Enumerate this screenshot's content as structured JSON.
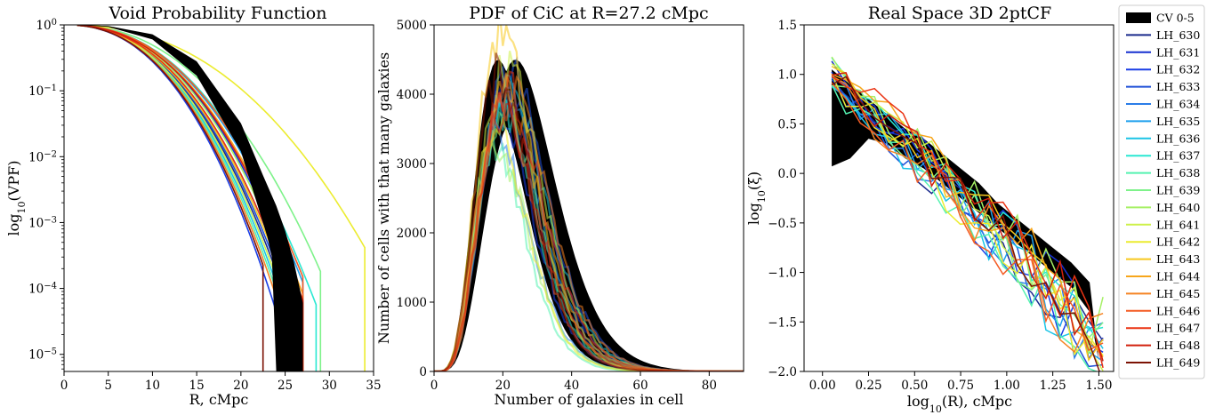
{
  "chart_data": [
    {
      "type": "line",
      "title": "Void Probability Function",
      "xlabel": "R, cMpc",
      "ylabel_main": "log",
      "ylabel_sub": "10",
      "ylabel_rest": "(VPF)",
      "xlim": [
        0,
        35
      ],
      "ylim": [
        5.5e-06,
        1
      ],
      "yscale": "log",
      "xticks": [
        0,
        5,
        10,
        15,
        20,
        25,
        30,
        35
      ],
      "yticks": [
        {
          "v": 1,
          "base": "10",
          "exp": "0"
        },
        {
          "v": 0.1,
          "base": "10",
          "exp": "−1"
        },
        {
          "v": 0.01,
          "base": "10",
          "exp": "−2"
        },
        {
          "v": 0.001,
          "base": "10",
          "exp": "−3"
        },
        {
          "v": 0.0001,
          "base": "10",
          "exp": "−4"
        },
        {
          "v": 1e-05,
          "base": "10",
          "exp": "−5"
        }
      ],
      "band": {
        "name": "CV 0-5",
        "x": [
          1.5,
          5,
          10,
          15,
          20,
          22.5,
          24,
          25,
          26,
          27,
          27,
          26,
          25,
          24,
          23.5,
          23,
          20,
          15,
          10,
          5,
          1.5
        ],
        "y": [
          1,
          0.96,
          0.72,
          0.28,
          0.032,
          0.0052,
          0.0018,
          0.00075,
          0.00025,
          6e-05,
          5.5e-06,
          5.5e-06,
          5.5e-06,
          5.5e-06,
          0.0003,
          0.0006,
          0.012,
          0.17,
          0.6,
          0.93,
          1
        ]
      },
      "series_rules": {
        "decay_scale": [
          9.6,
          10.2,
          9.0,
          9.7,
          9.9,
          10.6,
          9.4,
          10.8,
          9.3,
          11.6,
          10.1,
          9.5,
          14.2,
          9.8,
          10.4,
          9.2,
          10.7,
          9.9,
          10.3,
          9.1
        ],
        "cutoff": [
          26.5,
          27.0,
          25.5,
          26.0,
          26.5,
          27.0,
          25.5,
          28.5,
          26.0,
          29.0,
          27.0,
          25.5,
          34.0,
          26.5,
          27.0,
          25.0,
          27.0,
          26.0,
          27.0,
          22.5
        ]
      }
    },
    {
      "type": "line",
      "title": "PDF of CiC at R=27.2 cMpc",
      "xlabel": "Number of galaxies in cell",
      "ylabel": "Number of cells with that many galaxies",
      "xlim": [
        0,
        90
      ],
      "ylim": [
        0,
        5000
      ],
      "xticks": [
        0,
        20,
        40,
        60,
        80
      ],
      "yticks": [
        0,
        1000,
        2000,
        3000,
        4000,
        5000
      ],
      "band": {
        "name": "CV 0-5",
        "peak": [
          22,
          28
        ],
        "amp": [
          4000,
          4500
        ]
      },
      "series_rules": {
        "mean": [
          24,
          25,
          23,
          26,
          22,
          24.5,
          25.5,
          23.5,
          21,
          24,
          22,
          25,
          21.5,
          23,
          24.5,
          26,
          23,
          25,
          24,
          22.5
        ],
        "amp": [
          3900,
          4100,
          3600,
          4300,
          3400,
          4000,
          4200,
          3700,
          3300,
          3800,
          3200,
          4400,
          3500,
          4900,
          4000,
          4200,
          3900,
          4100,
          3800,
          4300
        ]
      }
    },
    {
      "type": "line",
      "title": "Real Space 3D 2ptCF",
      "xlabel_main": "log",
      "xlabel_sub": "10",
      "xlabel_rest": "(R), cMpc",
      "ylabel_main": "log",
      "ylabel_sub": "10",
      "ylabel_rest": "(ξ)",
      "xlim": [
        -0.1,
        1.58
      ],
      "ylim": [
        -2.0,
        1.5
      ],
      "xticks": [
        0.0,
        0.25,
        0.5,
        0.75,
        1.0,
        1.25,
        1.5
      ],
      "xtick_labels": [
        "0.00",
        "0.25",
        "0.50",
        "0.75",
        "1.00",
        "1.25",
        "1.50"
      ],
      "yticks": [
        -2.0,
        -1.5,
        -1.0,
        -0.5,
        0.0,
        0.5,
        1.0,
        1.5
      ],
      "ytick_labels": [
        "−2.0",
        "−1.5",
        "−1.0",
        "−0.5",
        "0.0",
        "0.5",
        "1.0",
        "1.5"
      ],
      "band": {
        "name": "CV 0-5",
        "x": [
          0.05,
          0.15,
          0.25,
          0.35,
          0.45,
          0.55,
          0.65,
          0.75,
          0.85,
          0.95,
          1.05,
          1.15,
          1.25,
          1.35,
          1.45,
          1.5,
          1.45,
          1.35,
          1.25,
          1.15,
          1.05,
          0.95,
          0.85,
          0.75,
          0.65,
          0.55,
          0.45,
          0.35,
          0.25,
          0.15,
          0.05
        ],
        "y": [
          1.05,
          0.9,
          0.75,
          0.6,
          0.45,
          0.35,
          0.2,
          0.05,
          -0.1,
          -0.3,
          -0.45,
          -0.6,
          -0.75,
          -0.9,
          -1.1,
          -1.9,
          -1.4,
          -1.15,
          -1.0,
          -0.85,
          -0.7,
          -0.55,
          -0.4,
          -0.25,
          -0.1,
          0.05,
          0.15,
          0.3,
          0.35,
          0.15,
          0.07
        ]
      }
    }
  ],
  "legend": {
    "entries": [
      "CV 0-5",
      "LH_630",
      "LH_631",
      "LH_632",
      "LH_633",
      "LH_634",
      "LH_635",
      "LH_636",
      "LH_637",
      "LH_638",
      "LH_639",
      "LH_640",
      "LH_641",
      "LH_642",
      "LH_643",
      "LH_644",
      "LH_645",
      "LH_646",
      "LH_647",
      "LH_648",
      "LH_649"
    ],
    "colors": [
      "#000000",
      "#1a2a8c",
      "#1630d0",
      "#1a3ee6",
      "#2151d8",
      "#2a7de8",
      "#1fa0ee",
      "#1cc4e6",
      "#2ae8d2",
      "#54f2b0",
      "#7ef28a",
      "#a6f066",
      "#cdf04a",
      "#ecec30",
      "#f7c81c",
      "#f7a61c",
      "#f58424",
      "#f45c24",
      "#ea3414",
      "#d2200c",
      "#7c1204"
    ],
    "placement": "outside-right"
  }
}
